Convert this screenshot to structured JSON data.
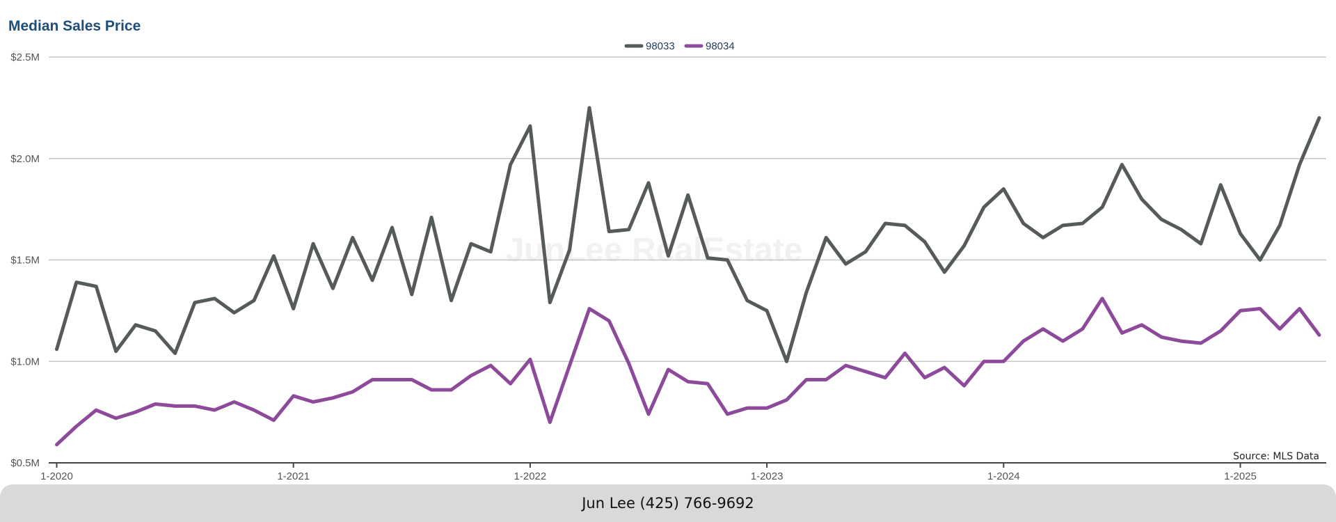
{
  "chart_data": {
    "type": "line",
    "title": "Median Sales Price",
    "y_ticks": [
      "$0.5M",
      "$1.0M",
      "$1.5M",
      "$2.0M",
      "$2.5M"
    ],
    "y_tick_values": [
      0.5,
      1.0,
      1.5,
      2.0,
      2.5
    ],
    "ylim": [
      0.5,
      2.5
    ],
    "x_start": "2020-01",
    "x_ticks": [
      "1-2020",
      "1-2021",
      "1-2022",
      "1-2023",
      "1-2024",
      "1-2025"
    ],
    "x_tick_months": [
      "2020-01",
      "2021-01",
      "2022-01",
      "2023-01",
      "2024-01",
      "2025-01"
    ],
    "grid": true,
    "legend_position": "top-center",
    "series": [
      {
        "name": "98033",
        "color": "#555b5a",
        "values": [
          1.06,
          1.39,
          1.37,
          1.05,
          1.18,
          1.15,
          1.04,
          1.29,
          1.31,
          1.24,
          1.3,
          1.52,
          1.26,
          1.58,
          1.36,
          1.61,
          1.4,
          1.66,
          1.33,
          1.71,
          1.3,
          1.58,
          1.54,
          1.97,
          2.16,
          1.29,
          1.55,
          2.25,
          1.64,
          1.65,
          1.88,
          1.52,
          1.82,
          1.51,
          1.5,
          1.3,
          1.25,
          1.0,
          1.34,
          1.61,
          1.48,
          1.54,
          1.68,
          1.67,
          1.59,
          1.44,
          1.57,
          1.76,
          1.85,
          1.68,
          1.61,
          1.67,
          1.68,
          1.76,
          1.97,
          1.8,
          1.7,
          1.65,
          1.58,
          1.87,
          1.63,
          1.5,
          1.67,
          1.97,
          2.2
        ]
      },
      {
        "name": "98034",
        "color": "#8e4a9a",
        "values": [
          0.59,
          0.68,
          0.76,
          0.72,
          0.75,
          0.79,
          0.78,
          0.78,
          0.76,
          0.8,
          0.76,
          0.71,
          0.83,
          0.8,
          0.82,
          0.85,
          0.91,
          0.91,
          0.91,
          0.86,
          0.86,
          0.93,
          0.98,
          0.89,
          1.01,
          0.7,
          0.98,
          1.26,
          1.2,
          0.99,
          0.74,
          0.96,
          0.9,
          0.89,
          0.74,
          0.77,
          0.77,
          0.81,
          0.91,
          0.91,
          0.98,
          0.95,
          0.92,
          1.04,
          0.92,
          0.97,
          0.88,
          1.0,
          1.0,
          1.1,
          1.16,
          1.1,
          1.16,
          1.31,
          1.14,
          1.18,
          1.12,
          1.1,
          1.09,
          1.15,
          1.25,
          1.26,
          1.16,
          1.26,
          1.13
        ]
      }
    ],
    "annotations": {
      "source": "Source: MLS Data",
      "watermark": "JunLee RealEstate"
    }
  },
  "footer": {
    "contact": "Jun Lee (425) 766-9692"
  }
}
